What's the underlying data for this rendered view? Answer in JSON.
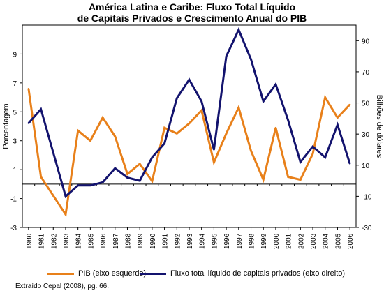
{
  "chart_data": {
    "type": "line",
    "title": "América Latina e Caribe: Fluxo Total Líquido",
    "subtitle": "de Capitais Privados e Crescimento Anual do PIB",
    "x": [
      "1980",
      "1981",
      "1982",
      "1983",
      "1984",
      "1985",
      "1986",
      "1987",
      "1988",
      "1989",
      "1990",
      "1991",
      "1992",
      "1993",
      "1994",
      "1995",
      "1996",
      "1997",
      "1998",
      "1999",
      "2000",
      "2001",
      "2002",
      "2003",
      "2004",
      "2005",
      "2006"
    ],
    "ylabel_left": "Porcentagem",
    "ylabel_right": "Bilhões de dólares",
    "ylim_left": [
      -3,
      11
    ],
    "yticks_left": [
      -3,
      -1,
      1,
      3,
      5,
      7,
      9
    ],
    "ylim_right": [
      -30,
      100
    ],
    "yticks_right": [
      -30,
      -10,
      10,
      30,
      50,
      70,
      90
    ],
    "grid": false,
    "legend_position": "bottom",
    "series": [
      {
        "name": "PIB (eixo esquerdo)",
        "axis": "left",
        "color": "#e8801a",
        "values": [
          6.6,
          0.5,
          -0.8,
          -2.1,
          3.7,
          3.0,
          4.6,
          3.3,
          0.7,
          1.4,
          0.2,
          3.9,
          3.5,
          4.2,
          5.1,
          1.5,
          3.5,
          5.3,
          2.3,
          0.3,
          3.9,
          0.5,
          0.3,
          2.1,
          6.0,
          4.6,
          5.5
        ]
      },
      {
        "name": "Fluxo total líquido de capitais privados (eixo direito)",
        "axis": "right",
        "color": "#13136e",
        "values": [
          37,
          46,
          18,
          -10,
          -3,
          -3,
          -1,
          8,
          2,
          0,
          15,
          24,
          53,
          65,
          51,
          20,
          80,
          97,
          78,
          51,
          62,
          39,
          12,
          22,
          15,
          36,
          11
        ]
      }
    ]
  },
  "source_note": "Extraído Cepal (2008), pg. 66."
}
